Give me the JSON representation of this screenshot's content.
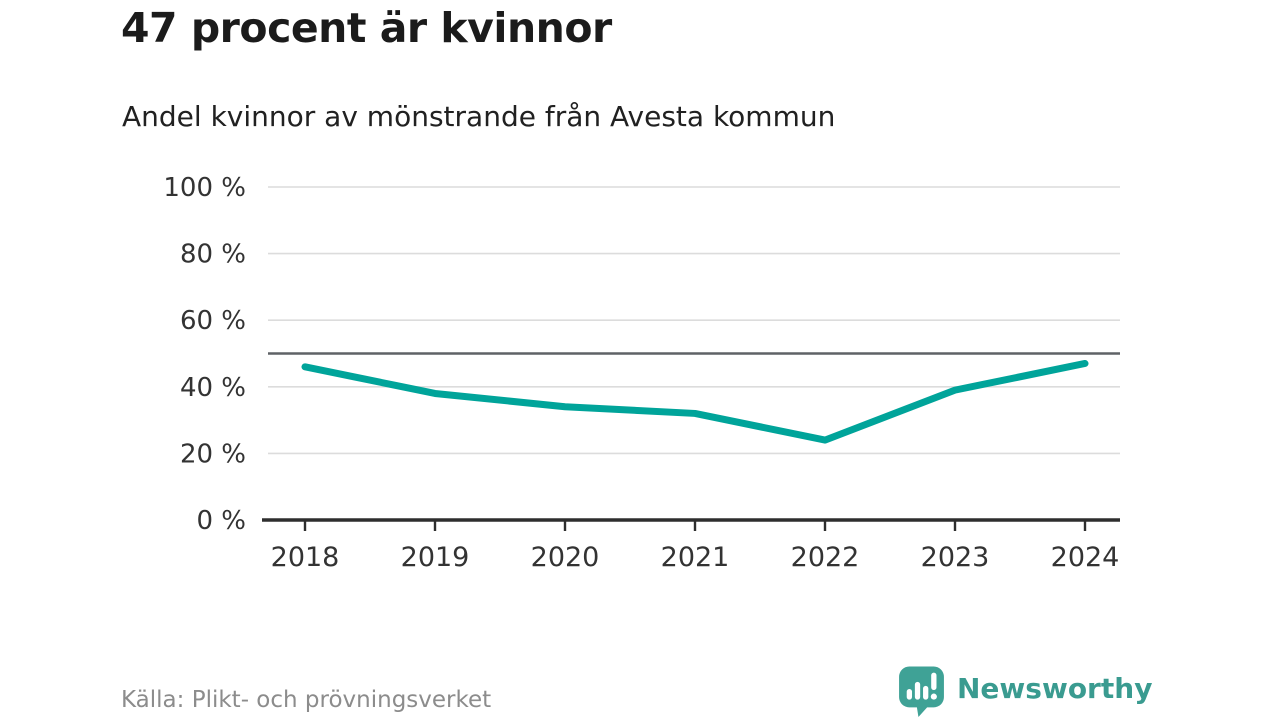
{
  "header": {
    "title": "47 procent är kvinnor",
    "subtitle": "Andel kvinnor av mönstrande från Avesta kommun"
  },
  "chart_data": {
    "type": "line",
    "categories": [
      "2018",
      "2019",
      "2020",
      "2021",
      "2022",
      "2023",
      "2024"
    ],
    "series": [
      {
        "name": "Andel kvinnor",
        "values": [
          46,
          38,
          34,
          32,
          24,
          39,
          47
        ]
      }
    ],
    "title": "Andel kvinnor av mönstrande från Avesta kommun",
    "xlabel": "",
    "ylabel": "",
    "ylim": [
      0,
      100
    ],
    "yticks": [
      0,
      20,
      40,
      60,
      80,
      100
    ],
    "ytick_suffix": " %",
    "reference_line": 50,
    "grid": true,
    "legend_position": "none",
    "line_color": "#00a49a"
  },
  "footer": {
    "source": "Källa: Plikt- och prövningsverket",
    "logo_text": "Newsworthy"
  },
  "colors": {
    "accent_teal": "#00a49a",
    "logo_teal": "#3fa296",
    "grid_gray": "#dcdcdc",
    "reference_gray": "#5f6266",
    "axis_dark": "#2e2e2e",
    "text_dark": "#1b1b1b",
    "source_gray": "#8c8c8c"
  }
}
